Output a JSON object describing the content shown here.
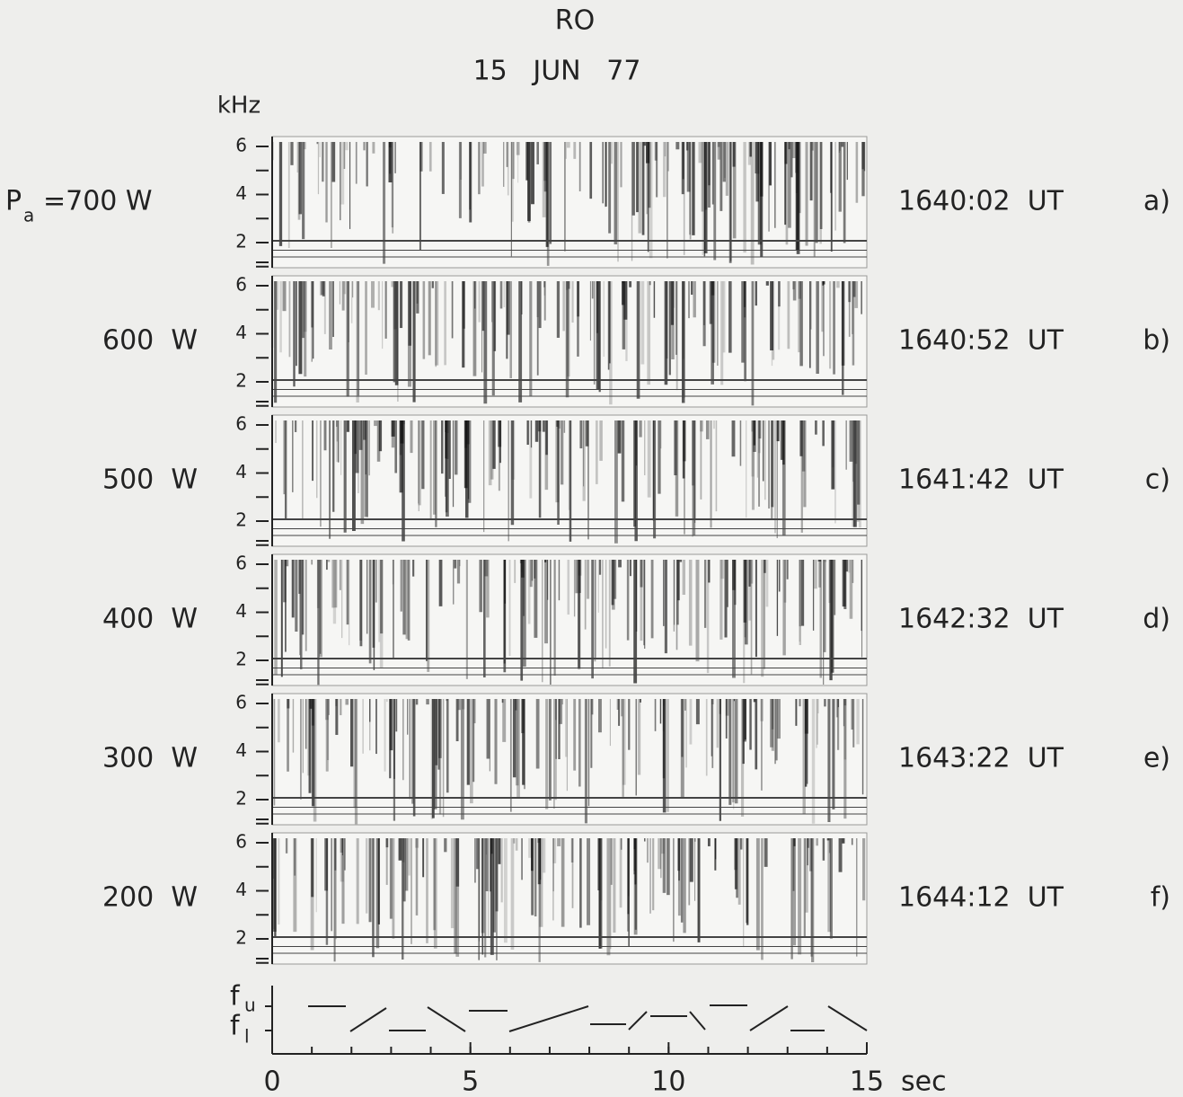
{
  "header": {
    "station": "RO",
    "date": "15   JUN   77",
    "y_unit": "kHz"
  },
  "y_axis": {
    "yticks": [
      2,
      4,
      6
    ]
  },
  "x_axis": {
    "xlim": [
      0,
      15
    ],
    "xticks": [
      0,
      5,
      10,
      15
    ],
    "unit": "sec"
  },
  "panels": [
    {
      "power_symbol": "P",
      "power_subscript": "a",
      "power": "=700 W",
      "time": "1640:02  UT",
      "label": "a)"
    },
    {
      "power": "600  W",
      "time": "1640:52  UT",
      "label": "b)"
    },
    {
      "power": "500  W",
      "time": "1641:42  UT",
      "label": "c)"
    },
    {
      "power": "400  W",
      "time": "1642:32  UT",
      "label": "d)"
    },
    {
      "power": "300  W",
      "time": "1643:22  UT",
      "label": "e)"
    },
    {
      "power": "200  W",
      "time": "1644:12  UT",
      "label": "f)"
    }
  ],
  "schedule": {
    "upper": "f",
    "upper_subscript": "u",
    "lower": "f",
    "lower_subscript": "l"
  }
}
